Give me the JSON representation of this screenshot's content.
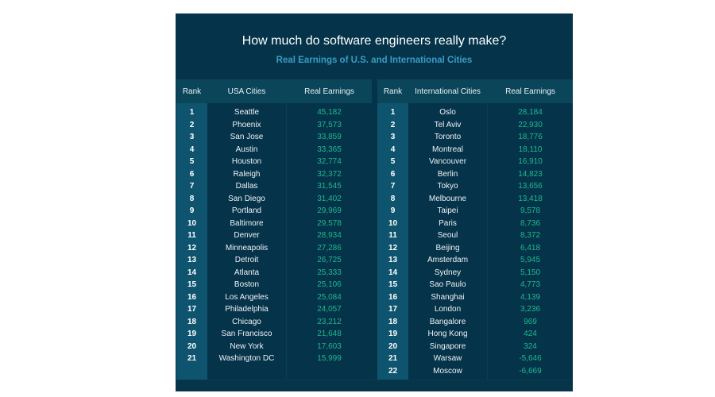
{
  "title": "How much do software engineers really make?",
  "subtitle": "Real Earnings of U.S. and International Cities",
  "colors": {
    "background": "#05344a",
    "header": "#0b4559",
    "rank_column": "#0f546e",
    "value": "#1fb98c",
    "subtitle": "#3a9cc4"
  },
  "usa": {
    "headers": {
      "rank": "Rank",
      "city": "USA Cities",
      "earnings": "Real Earnings"
    },
    "rows": [
      {
        "rank": "1",
        "city": "Seattle",
        "earnings": "45,182"
      },
      {
        "rank": "2",
        "city": "Phoenix",
        "earnings": "37,573"
      },
      {
        "rank": "3",
        "city": "San Jose",
        "earnings": "33,859"
      },
      {
        "rank": "4",
        "city": "Austin",
        "earnings": "33,365"
      },
      {
        "rank": "5",
        "city": "Houston",
        "earnings": "32,774"
      },
      {
        "rank": "6",
        "city": "Raleigh",
        "earnings": "32,372"
      },
      {
        "rank": "7",
        "city": "Dallas",
        "earnings": "31,545"
      },
      {
        "rank": "8",
        "city": "San Diego",
        "earnings": "31,402"
      },
      {
        "rank": "9",
        "city": "Portland",
        "earnings": "29,969"
      },
      {
        "rank": "10",
        "city": "Baltimore",
        "earnings": "29,578"
      },
      {
        "rank": "11",
        "city": "Denver",
        "earnings": "28,934"
      },
      {
        "rank": "12",
        "city": "Minneapolis",
        "earnings": "27,286"
      },
      {
        "rank": "13",
        "city": "Detroit",
        "earnings": "26,725"
      },
      {
        "rank": "14",
        "city": "Atlanta",
        "earnings": "25,333"
      },
      {
        "rank": "15",
        "city": "Boston",
        "earnings": "25,106"
      },
      {
        "rank": "16",
        "city": "Los Angeles",
        "earnings": "25,084"
      },
      {
        "rank": "17",
        "city": "Philadelphia",
        "earnings": "24,057"
      },
      {
        "rank": "18",
        "city": "Chicago",
        "earnings": "23,212"
      },
      {
        "rank": "19",
        "city": "San Francisco",
        "earnings": "21,648"
      },
      {
        "rank": "20",
        "city": "New York",
        "earnings": "17,603"
      },
      {
        "rank": "21",
        "city": "Washington DC",
        "earnings": "15,999"
      }
    ]
  },
  "international": {
    "headers": {
      "rank": "Rank",
      "city": "International Cities",
      "earnings": "Real Earnings"
    },
    "rows": [
      {
        "rank": "1",
        "city": "Oslo",
        "earnings": "28,184"
      },
      {
        "rank": "2",
        "city": "Tel Aviv",
        "earnings": "22,930"
      },
      {
        "rank": "3",
        "city": "Toronto",
        "earnings": "18,776"
      },
      {
        "rank": "4",
        "city": "Montreal",
        "earnings": "18,110"
      },
      {
        "rank": "5",
        "city": "Vancouver",
        "earnings": "16,910"
      },
      {
        "rank": "6",
        "city": "Berlin",
        "earnings": "14,823"
      },
      {
        "rank": "7",
        "city": "Tokyo",
        "earnings": "13,656"
      },
      {
        "rank": "8",
        "city": "Melbourne",
        "earnings": "13,418"
      },
      {
        "rank": "9",
        "city": "Taipei",
        "earnings": "9,578"
      },
      {
        "rank": "10",
        "city": "Paris",
        "earnings": "8,736"
      },
      {
        "rank": "11",
        "city": "Seoul",
        "earnings": "8,372"
      },
      {
        "rank": "12",
        "city": "Beijing",
        "earnings": "6,418"
      },
      {
        "rank": "13",
        "city": "Amsterdam",
        "earnings": "5,945"
      },
      {
        "rank": "14",
        "city": "Sydney",
        "earnings": "5,150"
      },
      {
        "rank": "15",
        "city": "Sao Paulo",
        "earnings": "4,773"
      },
      {
        "rank": "16",
        "city": "Shanghai",
        "earnings": "4,139"
      },
      {
        "rank": "17",
        "city": "London",
        "earnings": "3,236"
      },
      {
        "rank": "18",
        "city": "Bangalore",
        "earnings": "969"
      },
      {
        "rank": "19",
        "city": "Hong Kong",
        "earnings": "424"
      },
      {
        "rank": "20",
        "city": "Singapore",
        "earnings": "324"
      },
      {
        "rank": "21",
        "city": "Warsaw",
        "earnings": "-5,646"
      },
      {
        "rank": "22",
        "city": "Moscow",
        "earnings": "-6,669"
      }
    ]
  }
}
